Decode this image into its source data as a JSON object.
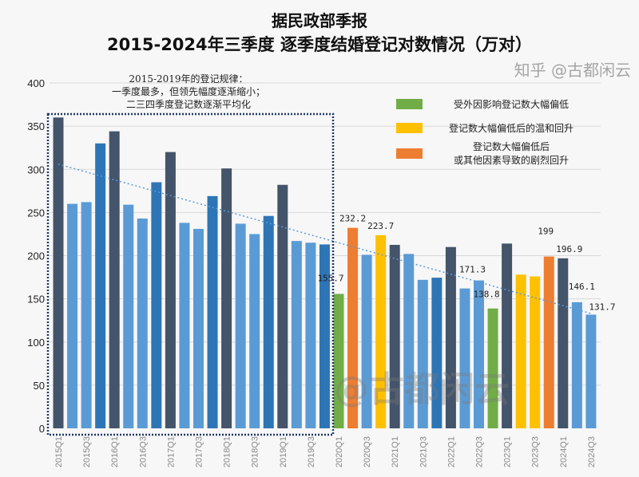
{
  "chart_data": {
    "type": "bar",
    "title": "据民政部季报",
    "subtitle": "2015-2024年三季度 逐季度结婚登记对数情况（万对）",
    "xlabel": "",
    "ylabel": "",
    "ylim": [
      0,
      400
    ],
    "yticks": [
      0,
      50,
      100,
      150,
      200,
      250,
      300,
      350,
      400
    ],
    "grid": true,
    "categories": [
      "2015Q1",
      "2015Q2",
      "2015Q3",
      "2015Q4",
      "2016Q1",
      "2016Q2",
      "2016Q3",
      "2016Q4",
      "2017Q1",
      "2017Q2",
      "2017Q3",
      "2017Q4",
      "2018Q1",
      "2018Q2",
      "2018Q3",
      "2018Q4",
      "2019Q1",
      "2019Q2",
      "2019Q3",
      "2019Q4",
      "2020Q1",
      "2020Q2",
      "2020Q3",
      "2020Q4",
      "2021Q1",
      "2021Q2",
      "2021Q3",
      "2021Q4",
      "2022Q1",
      "2022Q2",
      "2022Q3",
      "2022Q4",
      "2023Q1",
      "2023Q2",
      "2023Q3",
      "2023Q4",
      "2024Q1",
      "2024Q2",
      "2024Q3"
    ],
    "tick_labels_shown": [
      "2015Q1",
      "2015Q3",
      "2016Q1",
      "2016Q3",
      "2017Q1",
      "2017Q3",
      "2018Q1",
      "2018Q3",
      "2019Q1",
      "2019Q3",
      "2020Q1",
      "2020Q3",
      "2021Q1",
      "2021Q3",
      "2022Q1",
      "2022Q3",
      "2023Q1",
      "2023Q3",
      "2024Q1",
      "2024Q3"
    ],
    "values": [
      360,
      260,
      262,
      330,
      344,
      259,
      243,
      285,
      320,
      238,
      231,
      269,
      301,
      237,
      225,
      246,
      282,
      217,
      215,
      213,
      155.7,
      232.2,
      201,
      223.7,
      212.5,
      202,
      172,
      174.5,
      210,
      162,
      171.3,
      138.8,
      214,
      178,
      176,
      199,
      196.9,
      146.1,
      131.7
    ],
    "bar_categories": [
      "q1",
      "q2",
      "q3",
      "q4",
      "q1",
      "q2",
      "q3",
      "q4",
      "q1",
      "q2",
      "q3",
      "q4",
      "q1",
      "q2",
      "q3",
      "q4",
      "q1",
      "q2",
      "q3",
      "q4",
      "low",
      "sharp",
      "q3",
      "mild",
      "q1",
      "q2",
      "q3",
      "q4",
      "q1",
      "q2",
      "q3",
      "low",
      "q1",
      "mild",
      "mild",
      "sharp",
      "q1",
      "q2",
      "q3"
    ],
    "data_labels": {
      "20": "155.7",
      "21": "232.2",
      "23": "223.7",
      "30": "171.3",
      "31": "138.8",
      "35": "199",
      "36": "196.9",
      "37": "146.1",
      "38": "131.7"
    },
    "trendline": {
      "style": "dotted linear",
      "start": 306,
      "end": 133
    },
    "colors": {
      "q1": "#44546a",
      "q2": "#5b9bd5",
      "q3": "#5b9bd5",
      "q4": "#2e75b6",
      "low": "#70ad47",
      "mild": "#ffc000",
      "sharp": "#ed7d31",
      "trend": "#5b9bd5"
    },
    "legend": [
      {
        "key": "low",
        "label": "受外因影响登记数大幅偏低"
      },
      {
        "key": "mild",
        "label": "登记数大幅偏低后的温和回升"
      },
      {
        "key": "sharp",
        "label": "登记数大幅偏低后",
        "label2": "或其他因素导致的剧烈回升"
      }
    ],
    "legend_position": "top-right",
    "annotation": [
      "2015-2019年的登记规律：",
      "一季度最多，但领先幅度逐渐缩小；",
      "二三四季度登记数逐渐平均化"
    ]
  },
  "watermark": {
    "center": "@古都闲云",
    "corner": "知乎 @古都闲云"
  }
}
